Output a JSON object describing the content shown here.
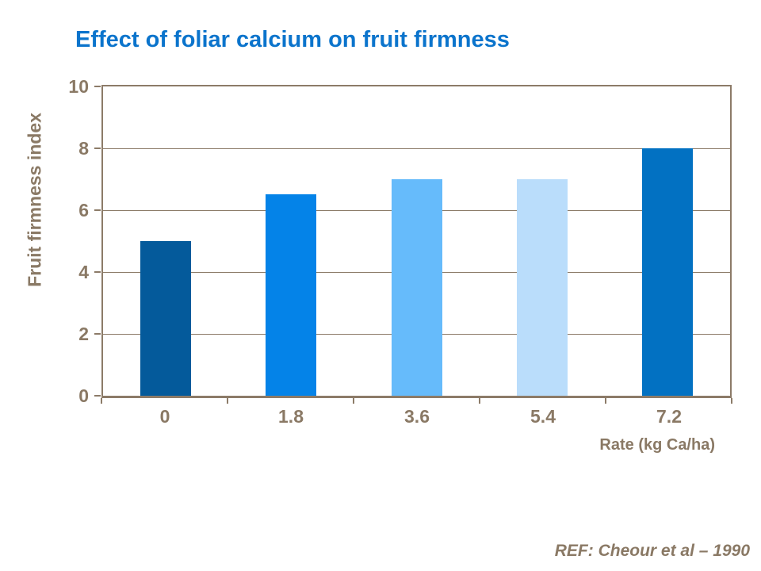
{
  "title": {
    "text": "Effect of foliar calcium on fruit firmness",
    "color": "#0b74cc"
  },
  "footer": {
    "ref": "REF: Cheour et al – 1990"
  },
  "chart_data": {
    "type": "bar",
    "title": "Effect of foliar calcium on fruit firmness",
    "categories": [
      "0",
      "1.8",
      "3.6",
      "5.4",
      "7.2"
    ],
    "values": [
      5,
      6.5,
      7,
      7,
      8
    ],
    "bar_colors": [
      "#045a9b",
      "#0483e8",
      "#66bbfb",
      "#baddfb",
      "#0271c2"
    ],
    "xlabel": "Rate (kg Ca/ha)",
    "ylabel": "Fruit firmness index",
    "ylim": [
      0,
      10
    ],
    "yticks": [
      0,
      2,
      4,
      6,
      8,
      10
    ],
    "grid": true,
    "legend": false,
    "axis_color": "#8c7b68",
    "label_color": "#8a7965"
  }
}
